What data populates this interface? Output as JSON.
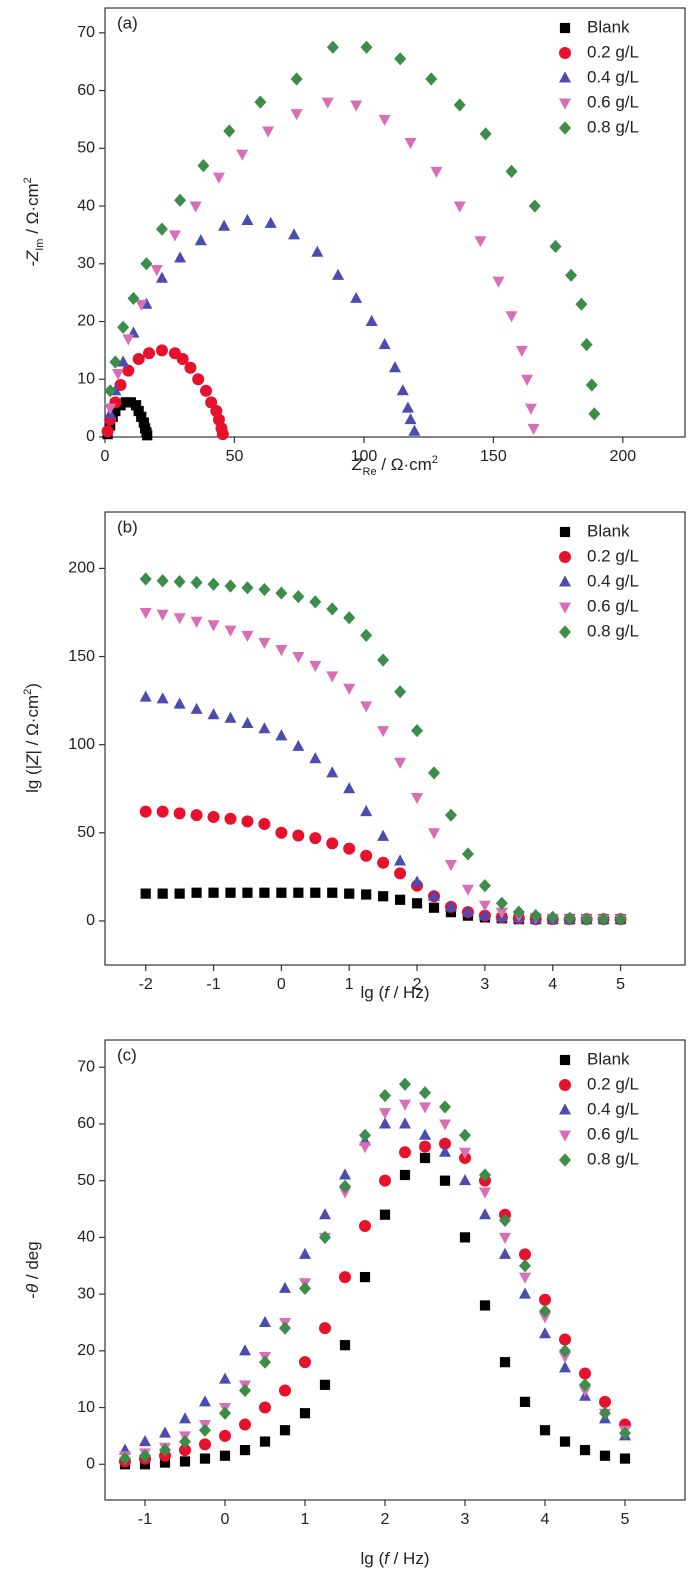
{
  "chart_data": [
    {
      "type": "scatter",
      "label": "(a)",
      "xlabel": [
        "Z",
        "Re",
        " / Ω·cm",
        "2"
      ],
      "ylabel": [
        "-Z",
        "Im",
        " / Ω·cm",
        "2"
      ],
      "xlim": [
        0,
        224
      ],
      "ylim": [
        0,
        74.3
      ],
      "xticks": [
        0,
        50,
        100,
        150,
        200
      ],
      "yticks": [
        0,
        10,
        20,
        30,
        40,
        50,
        60,
        70
      ],
      "legend": "upper right",
      "series": [
        {
          "name": "Blank",
          "color": "#000000",
          "marker": "square",
          "x": [
            1,
            2,
            3,
            4,
            6,
            8,
            10,
            12,
            13,
            14,
            15,
            15.5,
            16,
            16.3
          ],
          "values": [
            0.5,
            2,
            3.5,
            4.5,
            5.5,
            6,
            6,
            5.5,
            4.5,
            3.5,
            2.5,
            1.5,
            0.8,
            0.3
          ]
        },
        {
          "name": "0.2 g/L",
          "color": "#e8112d",
          "marker": "circle",
          "x": [
            1,
            2,
            4,
            6,
            9,
            13,
            17,
            22,
            27,
            30,
            33,
            36,
            39,
            41,
            43,
            44,
            45,
            45.5
          ],
          "values": [
            1,
            3,
            6,
            9,
            11.5,
            13.5,
            14.5,
            15,
            14.5,
            13.5,
            12,
            10,
            8,
            6,
            4.5,
            3,
            1.5,
            0.5
          ]
        },
        {
          "name": "0.4 g/L",
          "color": "#4b4bb0",
          "marker": "triangle-up",
          "x": [
            2,
            4,
            7,
            11,
            16,
            22,
            29,
            37,
            46,
            55,
            64,
            73,
            82,
            90,
            97,
            103,
            108,
            112,
            115,
            117,
            118,
            119.5
          ],
          "values": [
            4,
            8,
            13,
            18,
            23,
            27.5,
            31,
            34,
            36.5,
            37.5,
            37,
            35,
            32,
            28,
            24,
            20,
            16,
            12,
            8,
            5,
            3,
            1
          ]
        },
        {
          "name": "0.6 g/L",
          "color": "#d86fb6",
          "marker": "triangle-down",
          "x": [
            2,
            5,
            9,
            14,
            20,
            27,
            35,
            44,
            53,
            63,
            74,
            86,
            97,
            108,
            118,
            128,
            137,
            145,
            152,
            157,
            161,
            163,
            164.5,
            165.5
          ],
          "values": [
            5,
            11,
            17,
            23,
            29,
            35,
            40,
            45,
            49,
            53,
            56,
            58,
            57.5,
            55,
            51,
            46,
            40,
            34,
            27,
            21,
            15,
            10,
            5,
            1.5
          ]
        },
        {
          "name": "0.8 g/L",
          "color": "#3d8c4a",
          "marker": "diamond",
          "x": [
            2,
            4,
            7,
            11,
            16,
            22,
            29,
            38,
            48,
            60,
            74,
            88,
            101,
            114,
            126,
            137,
            147,
            157,
            166,
            174,
            180,
            184,
            186,
            188,
            189
          ],
          "values": [
            8,
            13,
            19,
            24,
            30,
            36,
            41,
            47,
            53,
            58,
            62,
            67.5,
            67.5,
            65.5,
            62,
            57.5,
            52.5,
            46,
            40,
            33,
            28,
            23,
            16,
            9,
            4
          ]
        }
      ]
    },
    {
      "type": "scatter",
      "label": "(b)",
      "xlabel": [
        "lg (",
        "f",
        " / Hz)"
      ],
      "ylabel": [
        "lg (|",
        "Z",
        "| / Ω·cm",
        "2",
        ")"
      ],
      "xlim": [
        -2.6,
        5.95
      ],
      "ylim": [
        -25,
        232
      ],
      "xticks": [
        -2,
        -1,
        0,
        1,
        2,
        3,
        4,
        5
      ],
      "yticks": [
        0,
        50,
        100,
        150,
        200
      ],
      "legend": "upper right",
      "x": [
        -2,
        -1.75,
        -1.5,
        -1.25,
        -1,
        -0.75,
        -0.5,
        -0.25,
        0,
        0.25,
        0.5,
        0.75,
        1,
        1.25,
        1.5,
        1.75,
        2,
        2.25,
        2.5,
        2.75,
        3,
        3.25,
        3.5,
        3.75,
        4,
        4.25,
        4.5,
        4.75,
        5
      ],
      "series": [
        {
          "name": "Blank",
          "color": "#000000",
          "marker": "square",
          "values": [
            15.5,
            15.5,
            15.5,
            16,
            16,
            16,
            16,
            16,
            16,
            16,
            16,
            16,
            15.5,
            15,
            14,
            12,
            10,
            7.5,
            5,
            3,
            2,
            1.5,
            1,
            1,
            1,
            1,
            1,
            1,
            1
          ]
        },
        {
          "name": "0.2 g/L",
          "color": "#e8112d",
          "marker": "circle",
          "values": [
            62,
            62,
            61,
            60,
            59,
            58,
            56.5,
            55,
            50,
            48.5,
            47,
            44,
            41,
            37,
            33,
            27,
            20,
            14,
            8,
            5,
            3,
            2,
            1.5,
            1,
            1,
            1,
            1,
            1,
            1
          ]
        },
        {
          "name": "0.4 g/L",
          "color": "#4b4bb0",
          "marker": "triangle-up",
          "values": [
            127,
            126,
            123,
            120,
            117,
            115,
            112,
            109,
            105,
            99,
            92,
            84,
            75,
            62,
            48,
            34,
            22,
            14,
            8,
            5,
            3,
            2,
            1.5,
            1,
            1,
            1,
            1,
            1,
            1
          ]
        },
        {
          "name": "0.6 g/L",
          "color": "#d86fb6",
          "marker": "triangle-down",
          "values": [
            175,
            174,
            172,
            170,
            168,
            165,
            162,
            158,
            154,
            150,
            145,
            139,
            132,
            122,
            108,
            90,
            70,
            50,
            32,
            18,
            9,
            5,
            3,
            2,
            1.5,
            1,
            1,
            1,
            1
          ]
        },
        {
          "name": "0.8 g/L",
          "color": "#3d8c4a",
          "marker": "diamond",
          "values": [
            194,
            193,
            192.5,
            192,
            191,
            190,
            189,
            188,
            186,
            184,
            181,
            177,
            172,
            162,
            148,
            130,
            108,
            84,
            60,
            38,
            20,
            10,
            5,
            3,
            2,
            1.5,
            1,
            1,
            1
          ]
        }
      ]
    },
    {
      "type": "scatter",
      "label": "(c)",
      "xlabel": [
        "lg (",
        "f",
        " / Hz)"
      ],
      "ylabel": [
        "-",
        "θ",
        " / deg"
      ],
      "xlim": [
        -1.5,
        5.75
      ],
      "ylim": [
        -6.3,
        74.8
      ],
      "xticks": [
        -1,
        0,
        1,
        2,
        3,
        4,
        5
      ],
      "yticks": [
        0,
        10,
        20,
        30,
        40,
        50,
        60,
        70
      ],
      "legend": "upper right",
      "x": [
        -1.25,
        -1,
        -0.75,
        -0.5,
        -0.25,
        0,
        0.25,
        0.5,
        0.75,
        1,
        1.25,
        1.5,
        1.75,
        2,
        2.25,
        2.5,
        2.75,
        3,
        3.25,
        3.5,
        3.75,
        4,
        4.25,
        4.5,
        4.75,
        5
      ],
      "series": [
        {
          "name": "Blank",
          "color": "#000000",
          "marker": "square",
          "values": [
            0,
            0,
            0.3,
            0.5,
            1,
            1.5,
            2.5,
            4,
            6,
            9,
            14,
            21,
            33,
            44,
            51,
            54,
            50,
            40,
            28,
            18,
            11,
            6,
            4,
            2.5,
            1.5,
            1
          ]
        },
        {
          "name": "0.2 g/L",
          "color": "#e8112d",
          "marker": "circle",
          "values": [
            0.5,
            1,
            1.5,
            2.5,
            3.5,
            5,
            7,
            10,
            13,
            18,
            24,
            33,
            42,
            50,
            55,
            56,
            56.5,
            54,
            50,
            44,
            37,
            29,
            22,
            16,
            11,
            7
          ]
        },
        {
          "name": "0.4 g/L",
          "color": "#4b4bb0",
          "marker": "triangle-up",
          "values": [
            2.5,
            4,
            5.5,
            8,
            11,
            15,
            20,
            25,
            31,
            37,
            44,
            51,
            57,
            60,
            60,
            58,
            55,
            50,
            44,
            37,
            30,
            23,
            17,
            12,
            8,
            5
          ]
        },
        {
          "name": "0.6 g/L",
          "color": "#d86fb6",
          "marker": "triangle-down",
          "values": [
            1.5,
            2,
            3,
            5,
            7,
            10,
            14,
            19,
            25,
            32,
            40,
            48,
            56,
            62,
            63.5,
            63,
            60,
            55,
            48,
            40,
            33,
            26,
            19,
            13,
            9,
            6
          ]
        },
        {
          "name": "0.8 g/L",
          "color": "#3d8c4a",
          "marker": "diamond",
          "values": [
            1,
            1.5,
            2.5,
            4,
            6,
            9,
            13,
            18,
            24,
            31,
            40,
            49,
            58,
            65,
            67,
            65.5,
            63,
            58,
            51,
            43,
            35,
            27,
            20,
            14,
            9,
            5.5
          ]
        }
      ]
    }
  ]
}
